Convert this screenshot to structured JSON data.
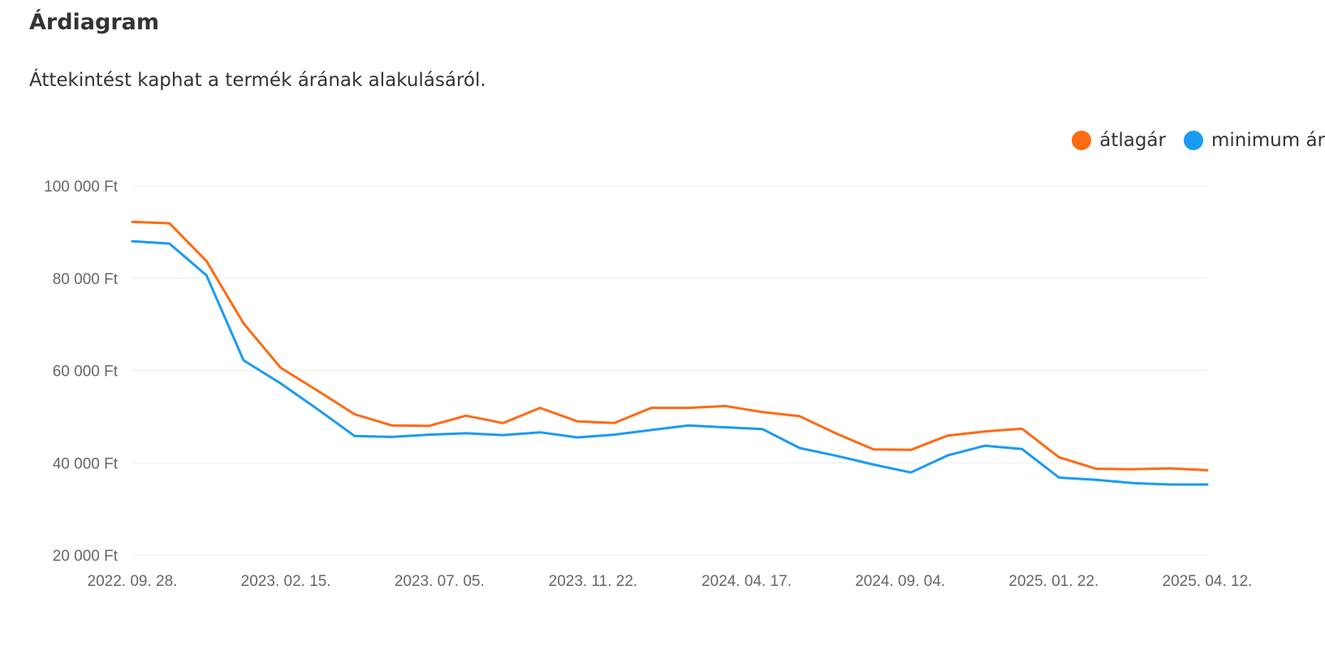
{
  "header": {
    "title": "Árdiagram",
    "subtitle": "Áttekintést kaphat a termék árának alakulásáról."
  },
  "chart_data": {
    "type": "line",
    "title": "",
    "xlabel": "",
    "ylabel": "",
    "ylim": [
      20000,
      100000
    ],
    "yticks": [
      20000,
      40000,
      60000,
      80000,
      100000
    ],
    "ytick_labels": [
      "20 000 Ft",
      "40 000 Ft",
      "60 000 Ft",
      "80 000 Ft",
      "100 000 Ft"
    ],
    "xtick_labels": [
      "2022. 09. 28.",
      "2023. 02. 15.",
      "2023. 07. 05.",
      "2023. 11. 22.",
      "2024. 04. 17.",
      "2024. 09. 04.",
      "2025. 01. 22.",
      "2025. 04. 12."
    ],
    "grid": "horizontal",
    "legend_position": "top-right",
    "series": [
      {
        "name": "átlagár",
        "color": "#ff6a13",
        "values": [
          92200,
          91900,
          83700,
          70200,
          60600,
          55600,
          50500,
          48100,
          48000,
          50200,
          48600,
          51900,
          49000,
          48600,
          51900,
          51900,
          52300,
          51000,
          50100,
          46300,
          42900,
          42800,
          45900,
          46800,
          47400,
          41200,
          38700,
          38600,
          38800,
          38400
        ]
      },
      {
        "name": "minimum ár",
        "color": "#1a9bf3",
        "values": [
          88000,
          87500,
          80600,
          62200,
          57200,
          51600,
          45800,
          45600,
          46100,
          46400,
          46000,
          46600,
          45500,
          46100,
          47100,
          48100,
          47700,
          47300,
          43200,
          41500,
          39600,
          37900,
          41600,
          43700,
          43000,
          36800,
          36300,
          35600,
          35300,
          35300
        ]
      }
    ]
  }
}
